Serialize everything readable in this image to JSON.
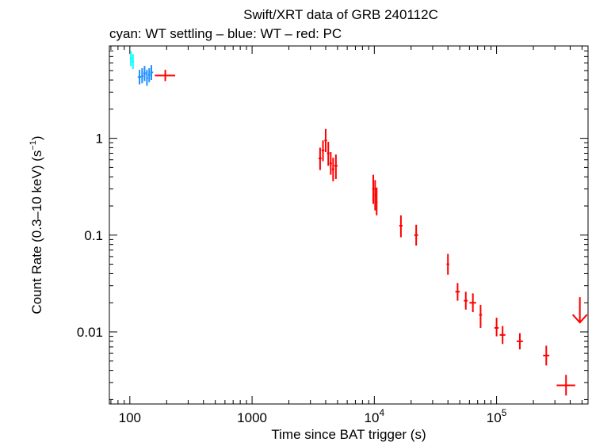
{
  "chart_data": {
    "type": "scatter",
    "title": "Swift/XRT data of GRB 240112C",
    "subtitle": "cyan: WT settling – blue: WT – red: PC",
    "xlabel": "Time since BAT trigger (s)",
    "ylabel": "Count Rate (0.3–10 keV) (s",
    "ylabel_sup": "−1",
    "ylabel_end": ")",
    "xscale": "log",
    "yscale": "log",
    "xlim": [
      68,
      560000
    ],
    "ylim": [
      0.0018,
      9
    ],
    "x_ticks": [
      {
        "value": 100,
        "label": "100"
      },
      {
        "value": 1000,
        "label": "1000"
      },
      {
        "value": 10000,
        "label": "10",
        "exp": "4"
      },
      {
        "value": 100000,
        "label": "10",
        "exp": "5"
      }
    ],
    "y_ticks": [
      {
        "value": 1,
        "label": "1"
      },
      {
        "value": 0.1,
        "label": "0.1"
      },
      {
        "value": 0.01,
        "label": "0.01"
      }
    ],
    "series": [
      {
        "color": "#00ffff",
        "points": [
          {
            "x": 102,
            "xerr": [
              100,
              104
            ],
            "y": 6.7,
            "yerr": [
              5.6,
              8.0
            ]
          },
          {
            "x": 106,
            "xerr": [
              104,
              108
            ],
            "y": 6.2,
            "yerr": [
              5.2,
              7.4
            ]
          }
        ]
      },
      {
        "color": "#1e90ff",
        "points": [
          {
            "x": 120,
            "xerr": [
              116,
              124
            ],
            "y": 4.3,
            "yerr": [
              3.6,
              5.1
            ]
          },
          {
            "x": 126,
            "xerr": [
              124,
              129
            ],
            "y": 4.4,
            "yerr": [
              3.7,
              5.3
            ]
          },
          {
            "x": 132,
            "xerr": [
              129,
              136
            ],
            "y": 4.7,
            "yerr": [
              3.9,
              5.6
            ]
          },
          {
            "x": 138,
            "xerr": [
              136,
              141
            ],
            "y": 4.2,
            "yerr": [
              3.5,
              5.1
            ]
          },
          {
            "x": 144,
            "xerr": [
              141,
              147
            ],
            "y": 4.5,
            "yerr": [
              3.8,
              5.3
            ]
          },
          {
            "x": 150,
            "xerr": [
              147,
              155
            ],
            "y": 4.8,
            "yerr": [
              4.0,
              5.7
            ]
          }
        ]
      },
      {
        "color": "#ff0000",
        "points": [
          {
            "x": 195,
            "xerr": [
              160,
              235
            ],
            "y": 4.45,
            "yerr": [
              3.9,
              5.1
            ]
          },
          {
            "x": 3600,
            "xerr": [
              3500,
              3700
            ],
            "y": 0.62,
            "yerr": [
              0.47,
              0.8
            ]
          },
          {
            "x": 3800,
            "xerr": [
              3700,
              3900
            ],
            "y": 0.75,
            "yerr": [
              0.58,
              0.95
            ]
          },
          {
            "x": 4000,
            "xerr": [
              3900,
              4100
            ],
            "y": 0.95,
            "yerr": [
              0.72,
              1.25
            ]
          },
          {
            "x": 4200,
            "xerr": [
              4100,
              4300
            ],
            "y": 0.7,
            "yerr": [
              0.52,
              0.92
            ]
          },
          {
            "x": 4400,
            "xerr": [
              4300,
              4500
            ],
            "y": 0.55,
            "yerr": [
              0.42,
              0.72
            ]
          },
          {
            "x": 4600,
            "xerr": [
              4500,
              4700
            ],
            "y": 0.48,
            "yerr": [
              0.36,
              0.63
            ]
          },
          {
            "x": 4850,
            "xerr": [
              4700,
              5000
            ],
            "y": 0.52,
            "yerr": [
              0.38,
              0.68
            ]
          },
          {
            "x": 9800,
            "xerr": [
              9600,
              10000
            ],
            "y": 0.3,
            "yerr": [
              0.21,
              0.42
            ]
          },
          {
            "x": 10150,
            "xerr": [
              10000,
              10300
            ],
            "y": 0.26,
            "yerr": [
              0.18,
              0.37
            ]
          },
          {
            "x": 10450,
            "xerr": [
              10300,
              10600
            ],
            "y": 0.22,
            "yerr": [
              0.16,
              0.31
            ]
          },
          {
            "x": 16500,
            "xerr": [
              16000,
              17000
            ],
            "y": 0.125,
            "yerr": [
              0.095,
              0.16
            ]
          },
          {
            "x": 22000,
            "xerr": [
              21200,
              22800
            ],
            "y": 0.1,
            "yerr": [
              0.078,
              0.128
            ]
          },
          {
            "x": 40000,
            "xerr": [
              39000,
              41000
            ],
            "y": 0.05,
            "yerr": [
              0.039,
              0.064
            ]
          },
          {
            "x": 48000,
            "xerr": [
              46000,
              50000
            ],
            "y": 0.026,
            "yerr": [
              0.021,
              0.032
            ]
          },
          {
            "x": 56000,
            "xerr": [
              54000,
              58000
            ],
            "y": 0.021,
            "yerr": [
              0.017,
              0.026
            ]
          },
          {
            "x": 64000,
            "xerr": [
              60000,
              68000
            ],
            "y": 0.02,
            "yerr": [
              0.016,
              0.025
            ]
          },
          {
            "x": 74000,
            "xerr": [
              72000,
              76000
            ],
            "y": 0.015,
            "yerr": [
              0.011,
              0.019
            ]
          },
          {
            "x": 100000,
            "xerr": [
              96000,
              104000
            ],
            "y": 0.011,
            "yerr": [
              0.009,
              0.014
            ]
          },
          {
            "x": 112000,
            "xerr": [
              106000,
              118000
            ],
            "y": 0.0093,
            "yerr": [
              0.0075,
              0.0115
            ]
          },
          {
            "x": 155000,
            "xerr": [
              146000,
              164000
            ],
            "y": 0.008,
            "yerr": [
              0.0066,
              0.0097
            ]
          },
          {
            "x": 255000,
            "xerr": [
              240000,
              270000
            ],
            "y": 0.0057,
            "yerr": [
              0.0045,
              0.0072
            ]
          },
          {
            "x": 370000,
            "xerr": [
              310000,
              440000
            ],
            "y": 0.0028,
            "yerr": [
              0.0022,
              0.0036
            ]
          }
        ],
        "upper_limits": [
          {
            "x": 480000,
            "y": 0.0125
          }
        ]
      }
    ],
    "grid": false,
    "legend": "none"
  }
}
